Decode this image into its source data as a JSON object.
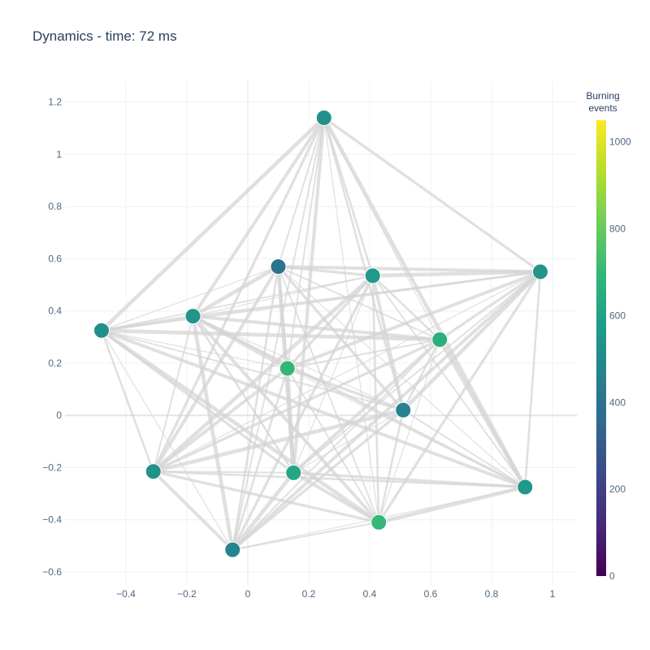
{
  "chart_data": {
    "type": "scatter",
    "title": "Dynamics - time: 72 ms",
    "xlabel": "",
    "ylabel": "",
    "xlim": [
      -0.6,
      1.08
    ],
    "ylim": [
      -0.65,
      1.28
    ],
    "x_ticks": [
      -0.4,
      -0.2,
      0,
      0.2,
      0.4,
      0.6,
      0.8,
      1
    ],
    "x_tick_labels": [
      "−0.4",
      "−0.2",
      "0",
      "0.2",
      "0.4",
      "0.6",
      "0.8",
      "1"
    ],
    "y_ticks": [
      -0.6,
      -0.4,
      -0.2,
      0,
      0.2,
      0.4,
      0.6,
      0.8,
      1,
      1.2
    ],
    "y_tick_labels": [
      "−0.6",
      "−0.4",
      "−0.2",
      "0",
      "0.2",
      "0.4",
      "0.6",
      "0.8",
      "1",
      "1.2"
    ],
    "grid": true,
    "edge_color": "#d3d3d3",
    "nodes": [
      {
        "x": 0.25,
        "y": 1.14,
        "events": 530
      },
      {
        "x": 0.1,
        "y": 0.57,
        "events": 400
      },
      {
        "x": 0.41,
        "y": 0.535,
        "events": 560
      },
      {
        "x": 0.96,
        "y": 0.55,
        "events": 545
      },
      {
        "x": -0.18,
        "y": 0.38,
        "events": 545
      },
      {
        "x": -0.48,
        "y": 0.325,
        "events": 520
      },
      {
        "x": 0.63,
        "y": 0.29,
        "events": 660
      },
      {
        "x": 0.13,
        "y": 0.18,
        "events": 690
      },
      {
        "x": 0.51,
        "y": 0.02,
        "events": 460
      },
      {
        "x": -0.31,
        "y": -0.215,
        "events": 530
      },
      {
        "x": 0.15,
        "y": -0.22,
        "events": 620
      },
      {
        "x": 0.91,
        "y": -0.275,
        "events": 560
      },
      {
        "x": 0.43,
        "y": -0.41,
        "events": 700
      },
      {
        "x": -0.05,
        "y": -0.515,
        "events": 480
      }
    ],
    "colorbar": {
      "title_lines": [
        "Burning",
        "events"
      ],
      "min": 0,
      "max": 1050,
      "ticks": [
        0,
        200,
        400,
        600,
        800,
        1000
      ],
      "colorscale": "viridis"
    }
  }
}
